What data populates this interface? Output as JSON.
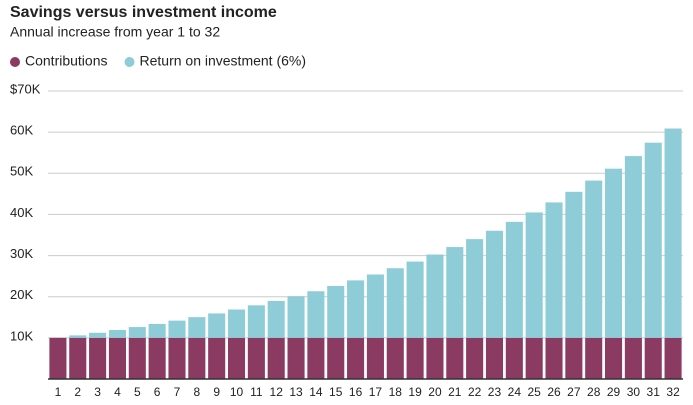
{
  "chart_data": {
    "type": "stacked_bar",
    "title": "Savings versus investment income",
    "subtitle": "Annual increase from year 1 to 32",
    "categories": [
      "1",
      "2",
      "3",
      "4",
      "5",
      "6",
      "7",
      "8",
      "9",
      "10",
      "11",
      "12",
      "13",
      "14",
      "15",
      "16",
      "17",
      "18",
      "19",
      "20",
      "21",
      "22",
      "23",
      "24",
      "25",
      "26",
      "27",
      "28",
      "29",
      "30",
      "31",
      "32"
    ],
    "series": [
      {
        "name": "Contributions",
        "color": "#8b3a62",
        "values": [
          10000,
          10000,
          10000,
          10000,
          10000,
          10000,
          10000,
          10000,
          10000,
          10000,
          10000,
          10000,
          10000,
          10000,
          10000,
          10000,
          10000,
          10000,
          10000,
          10000,
          10000,
          10000,
          10000,
          10000,
          10000,
          10000,
          10000,
          10000,
          10000,
          10000,
          10000,
          10000
        ]
      },
      {
        "name": "Return on investment (6%)",
        "color": "#8ecdd8",
        "values": [
          0,
          600,
          1236,
          1910,
          2625,
          3382,
          4185,
          5036,
          5938,
          6895,
          7908,
          8983,
          10122,
          11329,
          12609,
          13966,
          15404,
          16928,
          18543,
          20256,
          22071,
          23996,
          26035,
          28197,
          30489,
          32919,
          35494,
          38223,
          41117,
          44184,
          47435,
          50881
        ]
      }
    ],
    "ylim": [
      0,
      70000
    ],
    "yticks": [
      {
        "value": 10000,
        "label": "10K"
      },
      {
        "value": 20000,
        "label": "20K"
      },
      {
        "value": 30000,
        "label": "30K"
      },
      {
        "value": 40000,
        "label": "40K"
      },
      {
        "value": 50000,
        "label": "50K"
      },
      {
        "value": 60000,
        "label": "60K"
      },
      {
        "value": 70000,
        "label": "$70K"
      }
    ],
    "grid": true
  }
}
